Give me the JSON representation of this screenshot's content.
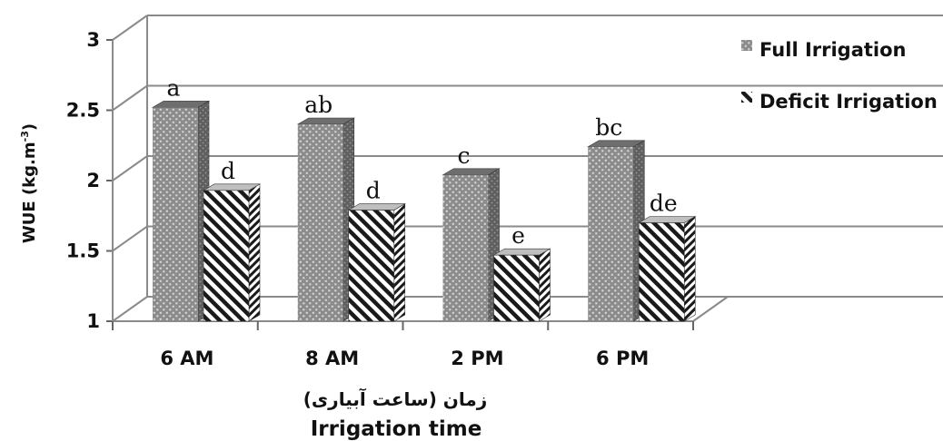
{
  "chart_data": {
    "type": "bar",
    "categories": [
      "6 AM",
      "8 AM",
      "2 PM",
      "6 PM"
    ],
    "series": [
      {
        "name": "Full Irrigation",
        "values": [
          2.52,
          2.4,
          2.04,
          2.24
        ],
        "labels": [
          "a",
          "ab",
          "c",
          "bc"
        ]
      },
      {
        "name": "Deficit Irrigation",
        "values": [
          1.93,
          1.79,
          1.47,
          1.7
        ],
        "labels": [
          "d",
          "d",
          "e",
          "de"
        ]
      }
    ],
    "yticks": [
      "1",
      "1.5",
      "2",
      "2.5",
      "3"
    ],
    "ylim": [
      1,
      3
    ],
    "ylabel": "WUE (kg.m",
    "ylabel_sup": "-3",
    "ylabel_close": ")",
    "xlabel_fa": "زمان (ساعت آبیاری)",
    "xlabel": "Irrigation time",
    "legend_position": "right",
    "grid": true,
    "three_d": true,
    "colors": {
      "full_front": "#8c8c8c",
      "full_dot": "#d6d6d6",
      "full_side": "#5f5f5f",
      "full_top": "#6e6e6e",
      "deficit_bg": "#ffffff",
      "deficit_stripe": "#1a1a1a",
      "grid": "#8a8a8a"
    }
  }
}
